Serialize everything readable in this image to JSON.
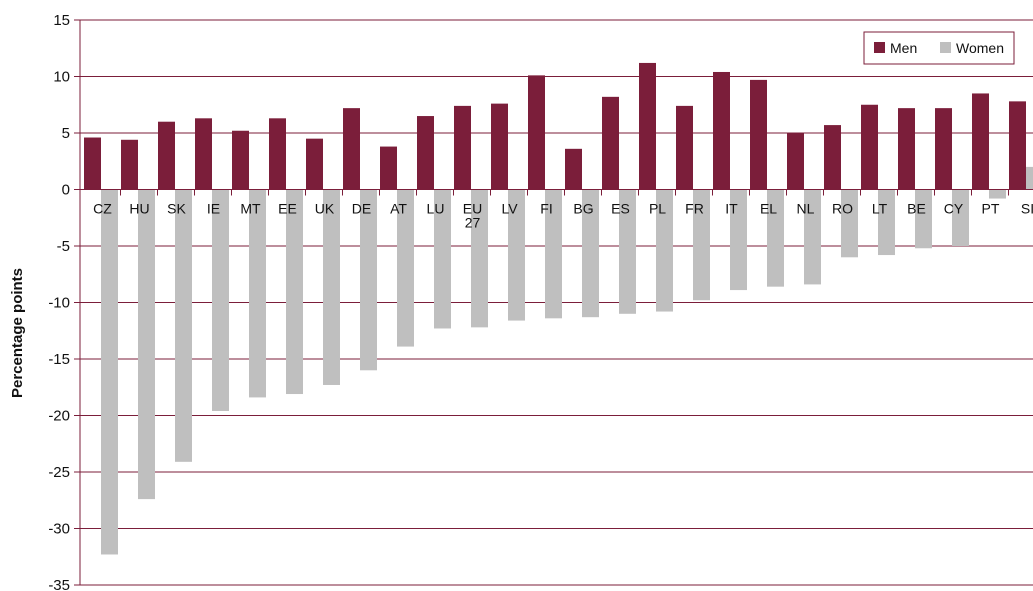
{
  "chart_data": {
    "type": "bar",
    "ylabel": "Percentage points",
    "ylim": [
      -35,
      15
    ],
    "yticks": [
      15,
      10,
      5,
      0,
      -5,
      -10,
      -15,
      -20,
      -25,
      -30,
      -35
    ],
    "grid": true,
    "legend_position": "top-right",
    "categories": [
      "CZ",
      "HU",
      "SK",
      "IE",
      "MT",
      "EE",
      "UK",
      "DE",
      "AT",
      "LU",
      "EU 27",
      "LV",
      "FI",
      "BG",
      "ES",
      "PL",
      "FR",
      "IT",
      "EL",
      "NL",
      "RO",
      "LT",
      "BE",
      "CY",
      "PT",
      "SI"
    ],
    "series": [
      {
        "name": "Men",
        "color": "#7b1e3a",
        "values": [
          4.6,
          4.4,
          6.0,
          6.3,
          5.2,
          6.3,
          4.5,
          7.2,
          3.8,
          6.5,
          7.4,
          7.6,
          10.1,
          3.6,
          8.2,
          11.2,
          7.4,
          10.4,
          9.7,
          5.0,
          5.7,
          7.5,
          7.2,
          7.2,
          8.5,
          7.8
        ]
      },
      {
        "name": "Women",
        "color": "#bfbfbf",
        "values": [
          -32.3,
          -27.4,
          -24.1,
          -19.6,
          -18.4,
          -18.1,
          -17.3,
          -16.0,
          -13.9,
          -12.3,
          -12.2,
          -11.6,
          -11.4,
          -11.3,
          -11.0,
          -10.8,
          -9.8,
          -8.9,
          -8.6,
          -8.4,
          -6.0,
          -5.8,
          -5.2,
          -5.0,
          -0.8,
          2.0
        ]
      }
    ]
  }
}
